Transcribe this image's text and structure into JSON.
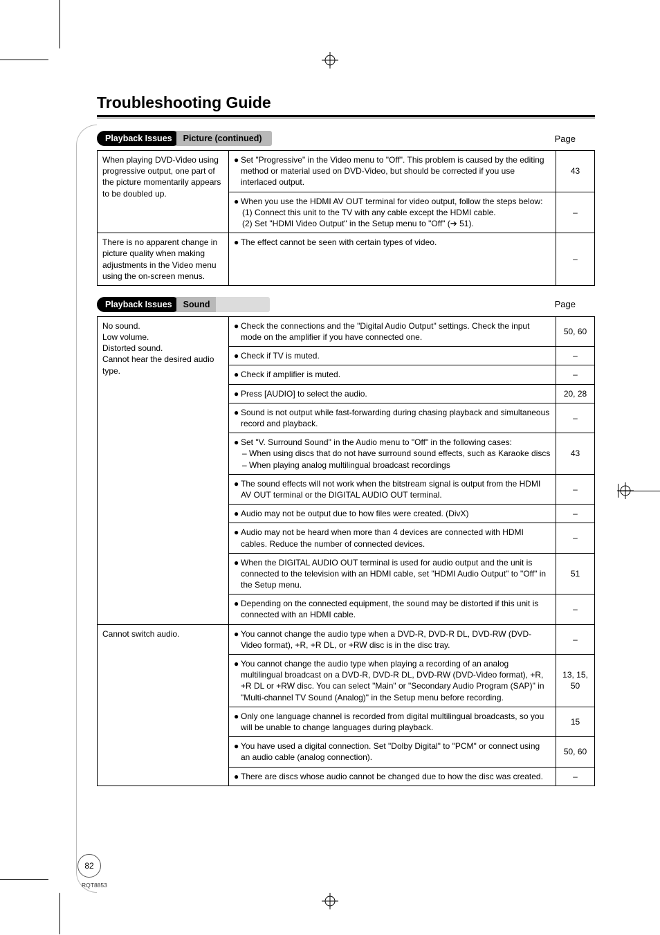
{
  "document": {
    "title": "Troubleshooting Guide",
    "page_number": "82",
    "doc_code": "RQT8853"
  },
  "colors": {
    "pill_bg": "#000000",
    "pill_fg": "#ffffff",
    "tab_bg": "#b8b8b8",
    "tab_ext_bg": "#dcdcdc",
    "border": "#000000"
  },
  "sections": [
    {
      "pill": "Playback Issues",
      "tab": "Picture (continued)",
      "page_label": "Page",
      "rows": [
        {
          "issue": "When playing DVD-Video using progressive output, one part of the picture momentarily appears to be doubled up.",
          "cells": [
            {
              "bullets": [
                "Set \"Progressive\" in the Video menu to \"Off\". This problem is caused by the editing method or material used on DVD-Video, but should be corrected if you use interlaced output."
              ],
              "page": "43"
            },
            {
              "bullets": [
                "When you use the HDMI AV OUT terminal for video output, follow the steps below:",
                "(1) Connect this unit to the TV with any cable except the HDMI cable.",
                "(2) Set \"HDMI Video Output\" in the Setup menu to \"Off\" (➔ 51)."
              ],
              "page": "–",
              "first_is_bullet": true
            }
          ]
        },
        {
          "issue": "There is no apparent change in picture quality when making adjustments in the Video menu using the on-screen menus.",
          "cells": [
            {
              "bullets": [
                "The effect cannot be seen with certain types of video."
              ],
              "page": "–"
            }
          ]
        }
      ]
    },
    {
      "pill": "Playback Issues",
      "tab": "Sound",
      "has_ext": true,
      "page_label": "Page",
      "rows": [
        {
          "issue": "No sound.\nLow volume.\nDistorted sound.\nCannot hear the desired audio type.",
          "cells": [
            {
              "bullets": [
                "Check the connections and the \"Digital Audio Output\" settings. Check the input mode on the amplifier if you have connected one."
              ],
              "page": "50, 60"
            },
            {
              "bullets": [
                "Check if TV is muted."
              ],
              "page": "–"
            },
            {
              "bullets": [
                "Check if amplifier is muted."
              ],
              "page": "–"
            },
            {
              "bullets": [
                "Press [AUDIO] to select the audio."
              ],
              "page": "20, 28"
            },
            {
              "bullets": [
                "Sound is not output while fast-forwarding during chasing playback and simultaneous record and playback."
              ],
              "page": "–"
            },
            {
              "bullets": [
                "Set \"V. Surround Sound\" in the Audio menu to \"Off\" in the following cases:",
                "– When using discs that do not have surround sound effects, such as Karaoke discs",
                "– When playing analog multilingual broadcast recordings"
              ],
              "page": "43",
              "first_is_bullet": true
            },
            {
              "bullets": [
                "The sound effects will not work when the bitstream signal is output from the HDMI AV OUT terminal or the DIGITAL AUDIO OUT terminal."
              ],
              "page": "–"
            },
            {
              "bullets": [
                "Audio may not be output due to how files were created. (DivX)"
              ],
              "page": "–"
            },
            {
              "bullets": [
                "Audio may not be heard when more than 4 devices are connected with HDMI cables. Reduce the number of connected devices."
              ],
              "page": "–"
            },
            {
              "bullets": [
                "When the DIGITAL AUDIO OUT terminal is used for audio output and the unit is connected to the television with an HDMI cable, set \"HDMI Audio Output\" to \"Off\" in the Setup menu."
              ],
              "page": "51"
            },
            {
              "bullets": [
                "Depending on the connected equipment, the sound may be distorted if this unit is connected with an HDMI cable."
              ],
              "page": "–"
            }
          ]
        },
        {
          "issue": "Cannot switch audio.",
          "cells": [
            {
              "bullets": [
                "You cannot change the audio type when a DVD-R, DVD-R DL, DVD-RW (DVD-Video format), +R, +R DL, or +RW disc is in the disc tray."
              ],
              "page": "–"
            },
            {
              "bullets": [
                "You cannot change the audio type when playing a recording of an analog multilingual broadcast on a DVD-R, DVD-R DL, DVD-RW (DVD-Video format), +R, +R DL or +RW disc. You can select \"Main\" or \"Secondary Audio Program (SAP)\" in \"Multi-channel TV Sound (Analog)\" in the Setup menu before recording."
              ],
              "page": "13, 15, 50"
            },
            {
              "bullets": [
                "Only one language channel is recorded from digital multilingual broadcasts, so you will be unable to change languages during playback."
              ],
              "page": "15"
            },
            {
              "bullets": [
                "You have used a digital connection. Set \"Dolby Digital\" to \"PCM\" or connect using an audio cable (analog connection)."
              ],
              "page": "50, 60"
            },
            {
              "bullets": [
                "There are discs whose audio cannot be changed due to how the disc was created."
              ],
              "page": "–"
            }
          ]
        }
      ]
    }
  ]
}
